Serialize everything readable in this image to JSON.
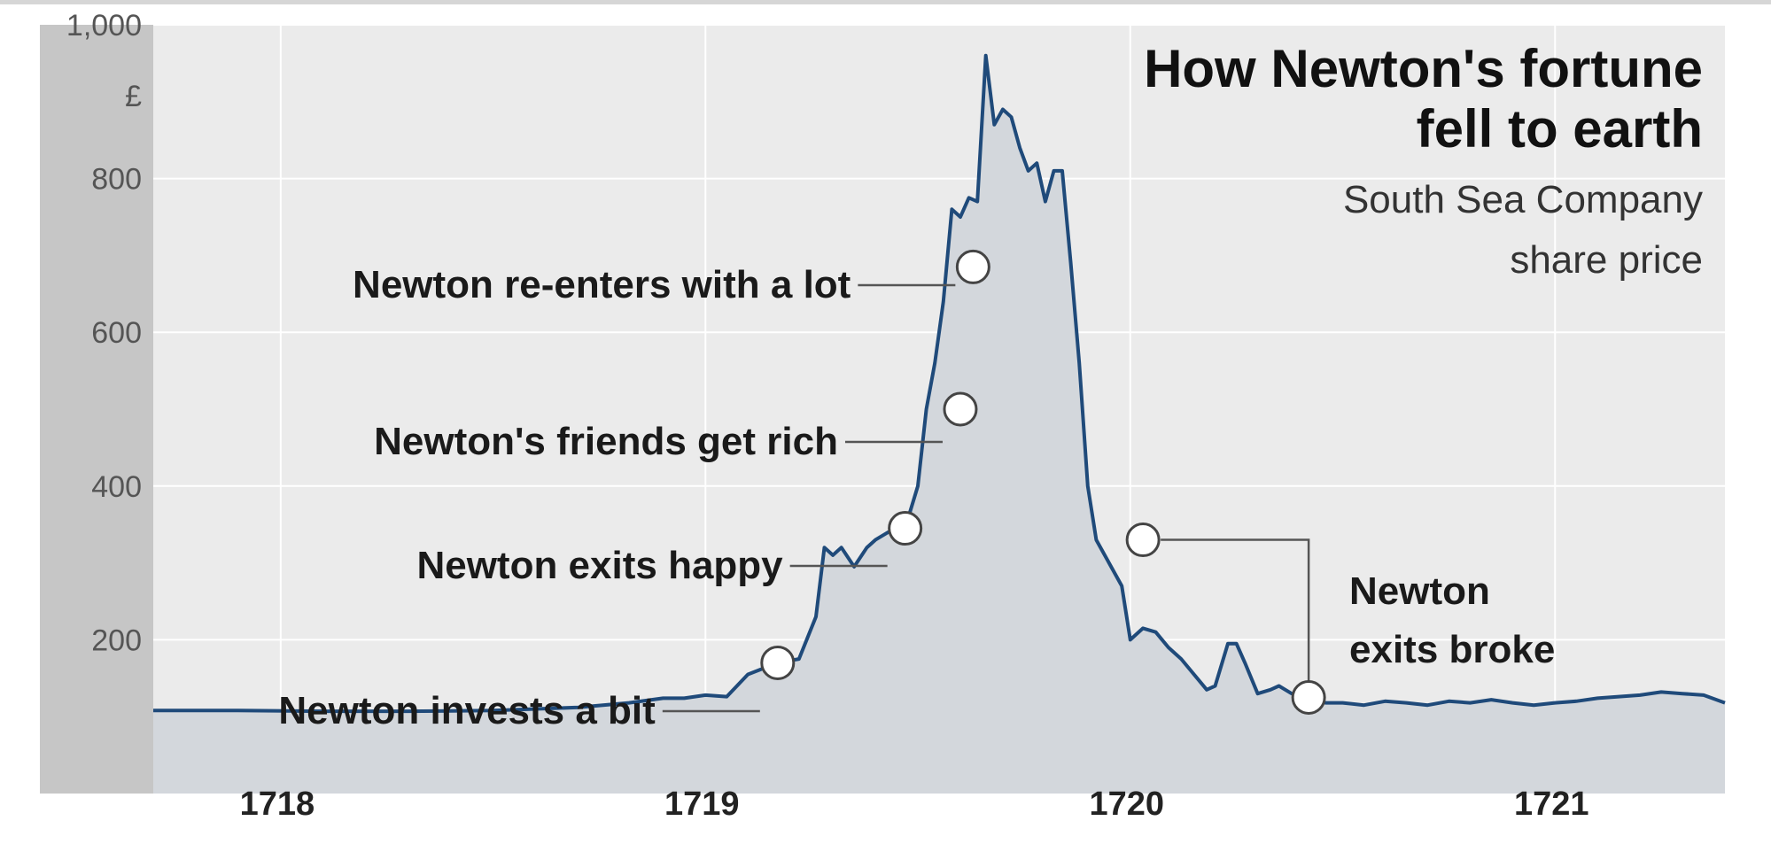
{
  "chart_data": {
    "type": "line",
    "title": "How Newton's fortune fell to earth",
    "subtitle": "South Sea Company share price",
    "ylabel": "£",
    "ylim": [
      0,
      1000
    ],
    "y_ticks": [
      {
        "value": 200,
        "label": "200"
      },
      {
        "value": 400,
        "label": "400"
      },
      {
        "value": 600,
        "label": "600"
      },
      {
        "value": 800,
        "label": "800"
      },
      {
        "value": 1000,
        "label": "1,000"
      }
    ],
    "xlim": [
      1717.7,
      1721.4
    ],
    "x_ticks": [
      {
        "value": 1718,
        "label": "1718"
      },
      {
        "value": 1719,
        "label": "1719"
      },
      {
        "value": 1720,
        "label": "1720"
      },
      {
        "value": 1721,
        "label": "1721"
      }
    ],
    "grid": true,
    "series": [
      {
        "x": [
          1717.7,
          1717.9,
          1718.1,
          1718.3,
          1718.5,
          1718.7,
          1718.82,
          1718.9,
          1718.95,
          1719.0,
          1719.05,
          1719.1,
          1719.17,
          1719.22,
          1719.26,
          1719.28,
          1719.3,
          1719.32,
          1719.35,
          1719.38,
          1719.4,
          1719.43,
          1719.47,
          1719.5,
          1719.52,
          1719.54,
          1719.56,
          1719.58,
          1719.6,
          1719.62,
          1719.64,
          1719.66,
          1719.68,
          1719.7,
          1719.72,
          1719.74,
          1719.76,
          1719.78,
          1719.8,
          1719.82,
          1719.84,
          1719.86,
          1719.88,
          1719.9,
          1719.92,
          1719.95,
          1719.98,
          1720.0,
          1720.03,
          1720.06,
          1720.09,
          1720.12,
          1720.15,
          1720.18,
          1720.2,
          1720.23,
          1720.25,
          1720.27,
          1720.3,
          1720.33,
          1720.35,
          1720.38,
          1720.42,
          1720.46,
          1720.5,
          1720.55,
          1720.6,
          1720.65,
          1720.7,
          1720.75,
          1720.8,
          1720.85,
          1720.9,
          1720.95,
          1721.0,
          1721.05,
          1721.1,
          1721.15,
          1721.2,
          1721.25,
          1721.3,
          1721.35,
          1721.4
        ],
        "values": [
          108,
          108,
          107,
          107,
          108,
          112,
          118,
          124,
          124,
          128,
          126,
          155,
          170,
          175,
          230,
          320,
          310,
          320,
          295,
          320,
          330,
          340,
          345,
          400,
          500,
          560,
          640,
          760,
          750,
          775,
          770,
          960,
          870,
          890,
          880,
          840,
          810,
          820,
          770,
          810,
          810,
          690,
          560,
          400,
          330,
          300,
          270,
          200,
          215,
          210,
          190,
          175,
          155,
          135,
          140,
          195,
          195,
          170,
          130,
          135,
          140,
          130,
          125,
          118,
          118,
          115,
          120,
          118,
          115,
          120,
          118,
          122,
          118,
          115,
          118,
          120,
          124,
          126,
          128,
          132,
          130,
          128,
          118
        ]
      }
    ],
    "annotations": [
      {
        "text": "Newton invests a bit",
        "x": 1719.17,
        "y": 170
      },
      {
        "text": "Newton exits happy",
        "x": 1719.47,
        "y": 345
      },
      {
        "text": "Newton's friends get rich",
        "x": 1719.6,
        "y": 500
      },
      {
        "text": "Newton re-enters with a lot",
        "x": 1719.63,
        "y": 685
      },
      {
        "text": "Newton exits broke",
        "x": 1720.03,
        "y": 330
      },
      {
        "text": "",
        "x": 1720.42,
        "y": 125
      }
    ]
  }
}
